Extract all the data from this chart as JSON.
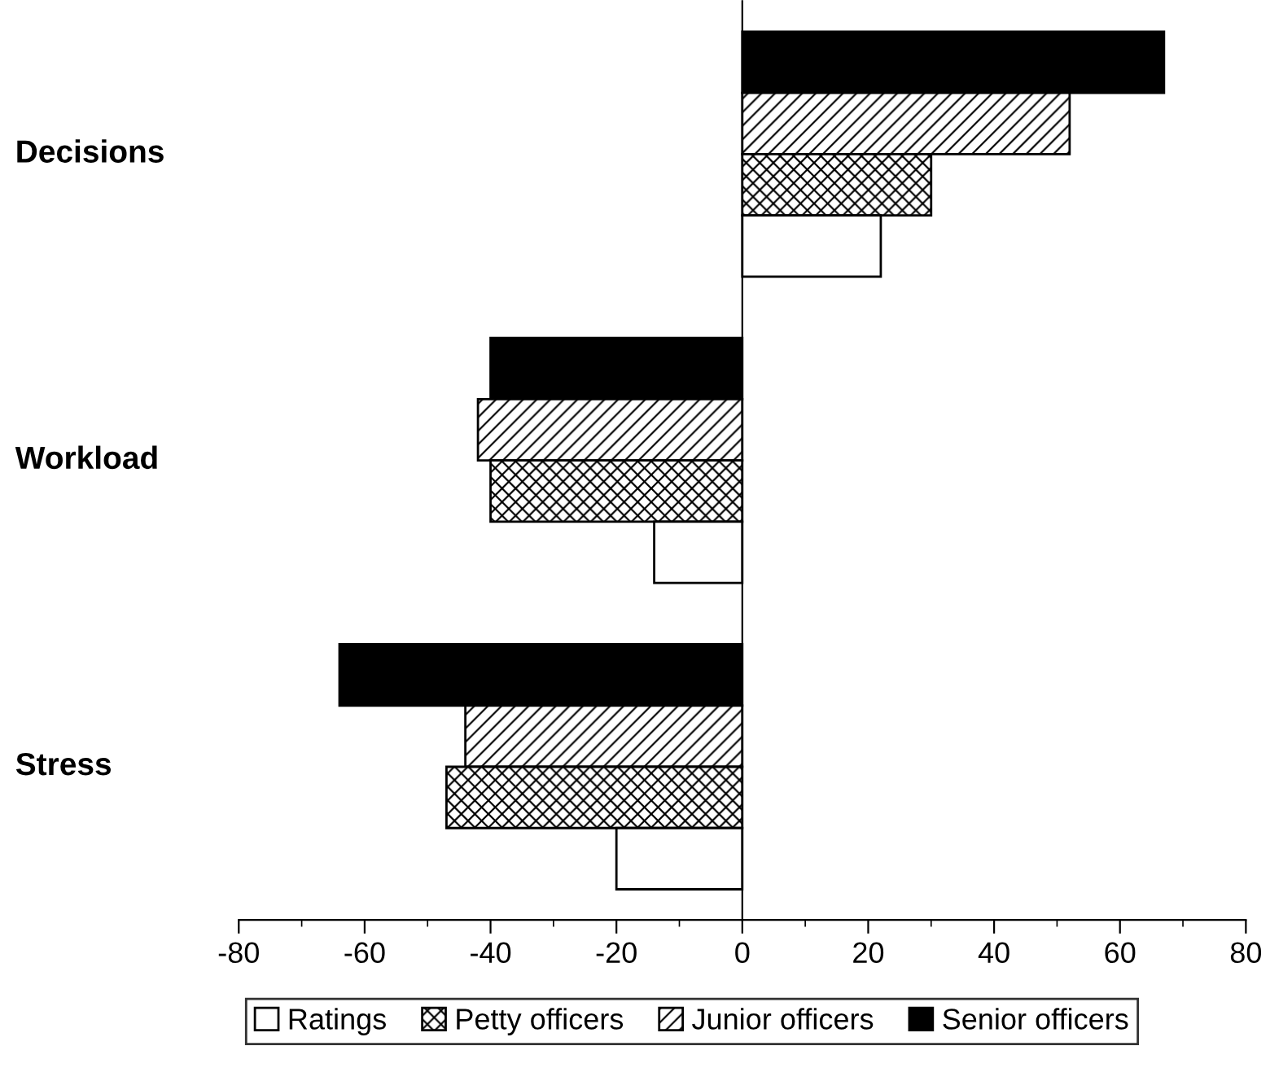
{
  "chart_data": {
    "type": "bar",
    "orientation": "horizontal",
    "categories": [
      "Decisions",
      "Workload",
      "Stress"
    ],
    "series": [
      {
        "name": "Senior officers",
        "color": "#000000",
        "values": [
          67,
          -40,
          -64
        ]
      },
      {
        "name": "Junior officers",
        "color": "#000000",
        "values": [
          52,
          -42,
          -44
        ]
      },
      {
        "name": "Petty officers",
        "color": "#000000",
        "values": [
          30,
          -40,
          -47
        ]
      },
      {
        "name": "Ratings",
        "color": "#ffffff",
        "values": [
          22,
          -14,
          -20
        ]
      }
    ],
    "xlim": [
      -80,
      80
    ],
    "xticks": [
      -80,
      -60,
      -40,
      -20,
      0,
      20,
      40,
      60,
      80
    ],
    "legend": "bottom"
  }
}
